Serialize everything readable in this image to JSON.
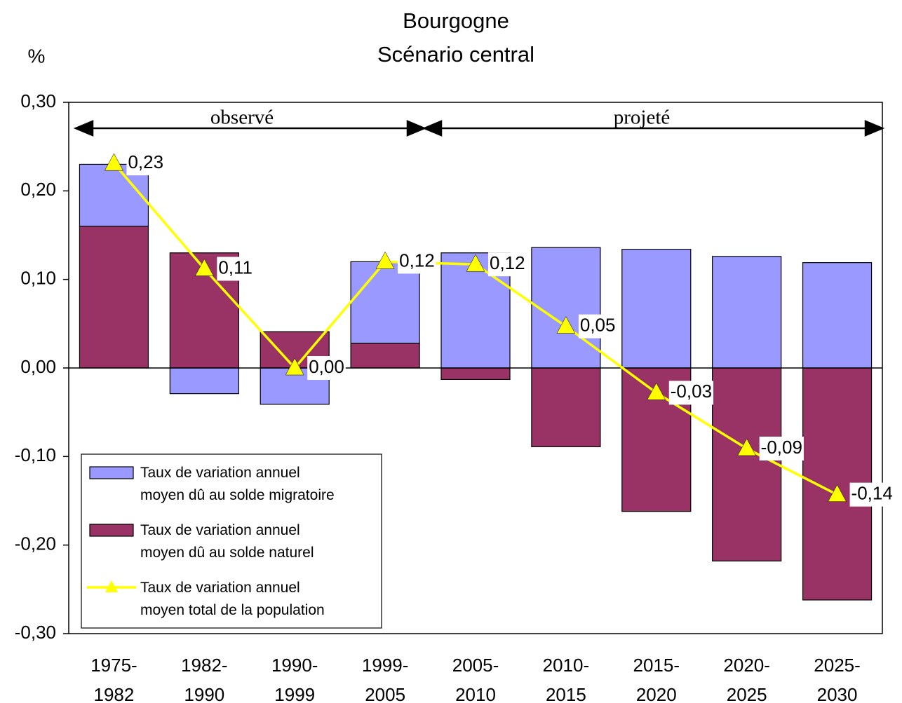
{
  "chart_data": {
    "type": "bar",
    "title": "Bourgogne",
    "subtitle": "Scénario central",
    "y_label": "%",
    "annotations": [
      "observé",
      "projeté"
    ],
    "categories": [
      "1975-\n1982",
      "1982-\n1990",
      "1990-\n1999",
      "1999-\n2005",
      "2005-\n2010",
      "2010-\n2015",
      "2015-\n2020",
      "2020-\n2025",
      "2025-\n2030"
    ],
    "stacked": true,
    "series": [
      {
        "name": "Taux de variation annuel\nmoyen dû au solde naturel",
        "type": "bar",
        "color": "#993366",
        "values": [
          0.16,
          0.13,
          0.041,
          0.028,
          -0.013,
          -0.089,
          -0.162,
          -0.218,
          -0.262
        ]
      },
      {
        "name": "Taux de variation annuel\nmoyen dû au solde migratoire",
        "type": "bar",
        "color": "#9999ff",
        "values": [
          0.07,
          -0.029,
          -0.041,
          0.092,
          0.13,
          0.136,
          0.134,
          0.126,
          0.119
        ]
      },
      {
        "name": "Taux de variation annuel\nmoyen total de la population",
        "type": "line",
        "color": "#ffff00",
        "values": [
          0.231,
          0.112,
          0,
          0.12,
          0.117,
          0.047,
          -0.028,
          -0.091,
          -0.143
        ],
        "value_labels": [
          "0,23",
          "0,11",
          "0,00",
          "0,12",
          "0,12",
          "0,05",
          "-0,03",
          "-0,09",
          "-0,14"
        ]
      }
    ],
    "legend_order": [
      1,
      0,
      2
    ],
    "ylim": [
      -0.3,
      0.3
    ],
    "yticks": [
      {
        "value": -0.3,
        "label": "-0,30"
      },
      {
        "value": -0.2,
        "label": "-0,20"
      },
      {
        "value": -0.1,
        "label": "-0,10"
      },
      {
        "value": 0,
        "label": "0,00"
      },
      {
        "value": 0.1,
        "label": "0,10"
      },
      {
        "value": 0.2,
        "label": "0,20"
      },
      {
        "value": 0.3,
        "label": "0,30"
      }
    ],
    "legend": "lower left",
    "grid": false
  }
}
